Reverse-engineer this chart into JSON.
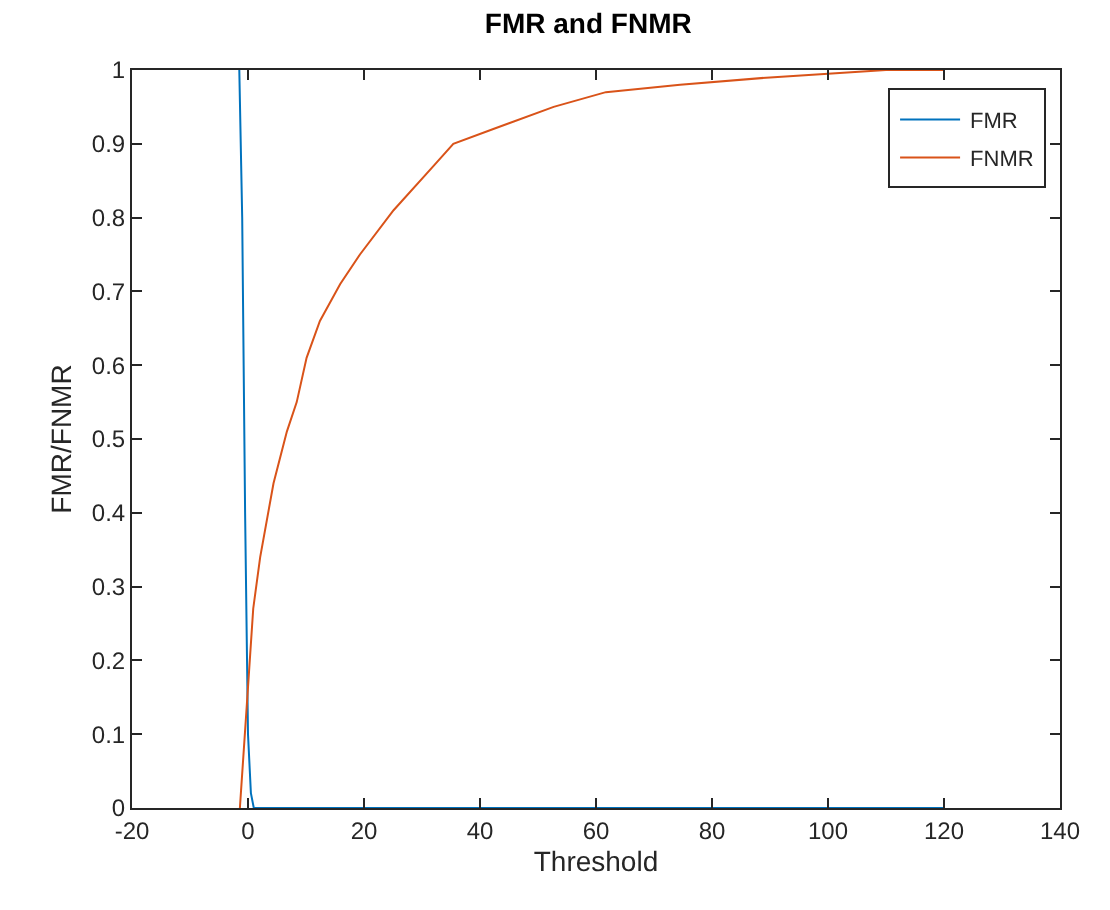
{
  "chart_data": {
    "type": "line",
    "title": "FMR and FNMR",
    "xlabel": "Threshold",
    "ylabel": "FMR/FNMR",
    "xlim": [
      -20,
      140
    ],
    "xticks": [
      -20,
      0,
      20,
      40,
      60,
      80,
      100,
      120,
      140
    ],
    "ylim": [
      0,
      1
    ],
    "yticks": [
      0,
      0.1,
      0.2,
      0.3,
      0.4,
      0.5,
      0.6,
      0.7,
      0.8,
      0.9,
      1
    ],
    "legend": "top right",
    "marker": "none",
    "line_style": "solid",
    "series": [
      {
        "name": "FMR",
        "color": "#0072bd",
        "x": [
          -1.5,
          -1,
          -0.5,
          0,
          0.5,
          1,
          20,
          60,
          120
        ],
        "values": [
          1,
          0.8,
          0.4,
          0.1,
          0.02,
          0,
          0,
          0,
          0
        ]
      },
      {
        "name": "FNMR",
        "color": "#d95319",
        "x": [
          -1.4,
          -0.2,
          0.9,
          2.1,
          4.4,
          6.7,
          8.4,
          10.1,
          12.4,
          15.9,
          19.3,
          25.1,
          32,
          35.4,
          42.3,
          52.7,
          61.7,
          74.5,
          90,
          100,
          110,
          120
        ],
        "values": [
          0,
          0.14,
          0.27,
          0.34,
          0.44,
          0.51,
          0.55,
          0.61,
          0.66,
          0.71,
          0.75,
          0.81,
          0.87,
          0.9,
          0.92,
          0.95,
          0.97,
          0.98,
          0.99,
          0.995,
          1,
          1
        ]
      }
    ]
  }
}
